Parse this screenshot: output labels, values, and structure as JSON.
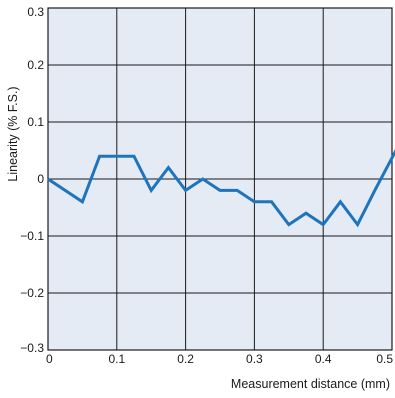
{
  "chart_data": {
    "type": "line",
    "xlabel": "Measurement distance (mm)",
    "ylabel": "Linearity (% F.S.)",
    "xlim": [
      0,
      0.5
    ],
    "ylim": [
      -0.3,
      0.3
    ],
    "grid": true,
    "x_ticks": [
      {
        "value": 0,
        "label": "0"
      },
      {
        "value": 0.1,
        "label": "0.1"
      },
      {
        "value": 0.2,
        "label": "0.2"
      },
      {
        "value": 0.3,
        "label": "0.3"
      },
      {
        "value": 0.4,
        "label": "0.4"
      },
      {
        "value": 0.5,
        "label": "0.5"
      }
    ],
    "y_ticks": [
      {
        "value": 0.3,
        "label": "0.3"
      },
      {
        "value": 0.2,
        "label": "0.2"
      },
      {
        "value": 0.1,
        "label": "0.1"
      },
      {
        "value": 0,
        "label": "0"
      },
      {
        "value": -0.1,
        "label": "−0.1"
      },
      {
        "value": -0.2,
        "label": "−0.2"
      },
      {
        "value": -0.3,
        "label": "−0.3"
      }
    ],
    "series": [
      {
        "x": [
          0,
          0.05,
          0.075,
          0.1,
          0.125,
          0.15,
          0.175,
          0.2,
          0.225,
          0.25,
          0.275,
          0.3,
          0.325,
          0.35,
          0.375,
          0.4,
          0.425,
          0.45,
          0.475,
          0.51
        ],
        "values": [
          0,
          -0.04,
          0.04,
          0.04,
          0.04,
          -0.02,
          0.02,
          -0.02,
          0,
          -0.02,
          -0.02,
          -0.04,
          -0.04,
          -0.08,
          -0.06,
          -0.08,
          -0.04,
          -0.08,
          -0.02,
          0.06
        ]
      }
    ],
    "colors": {
      "plot_background": "#e4ebf5",
      "grid": "#1a1a1a",
      "line": "#1f74bb"
    }
  }
}
